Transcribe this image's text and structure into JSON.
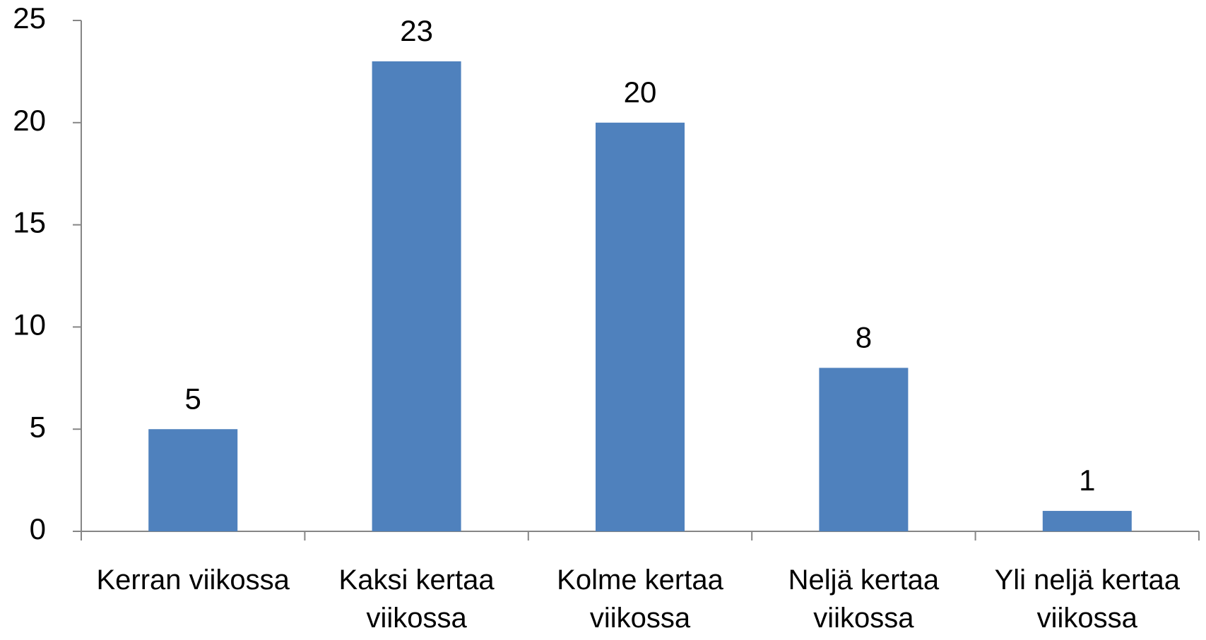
{
  "chart_data": {
    "type": "bar",
    "categories": [
      "Kerran viikossa",
      "Kaksi kertaa viikossa",
      "Kolme kertaa viikossa",
      "Neljä kertaa viikossa",
      "Yli neljä kertaa viikossa"
    ],
    "values": [
      5,
      23,
      20,
      8,
      1
    ],
    "color": "#4f81bd",
    "ylim": [
      0,
      25
    ],
    "yticks": [
      0,
      5,
      10,
      15,
      20,
      25
    ],
    "grid": false
  }
}
